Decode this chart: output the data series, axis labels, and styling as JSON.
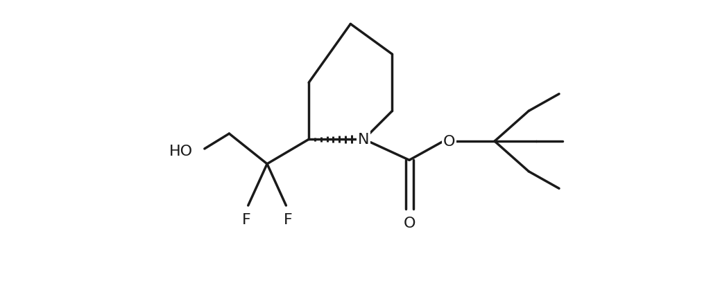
{
  "background_color": "#ffffff",
  "line_color": "#1a1a1a",
  "line_width": 2.5,
  "font_size": 16,
  "figsize": [
    10.38,
    4.1
  ],
  "dpi": 100,
  "xlim": [
    -0.5,
    10.5
  ],
  "ylim": [
    1.5,
    9.0
  ]
}
